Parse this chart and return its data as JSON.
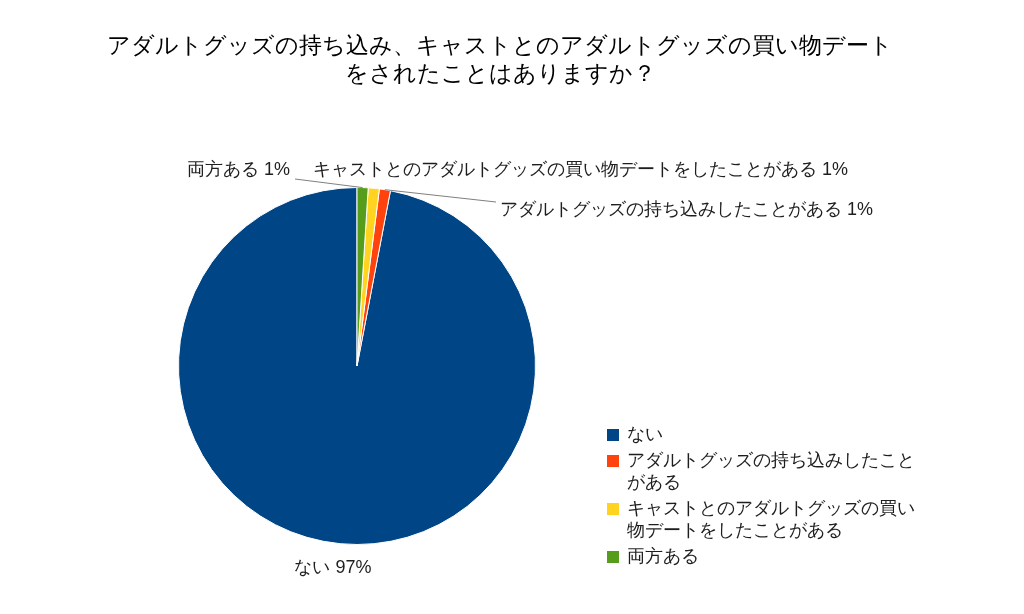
{
  "chart_data": {
    "type": "pie",
    "title": "アダルトグッズの持ち込み、キャストとのアダルトグッズの買い物デートをされたことはありますか？",
    "categories": [
      "ない",
      "アダルトグッズの持ち込みしたことがある",
      "キャストとのアダルトグッズの買い物デートをしたことがある",
      "両方ある"
    ],
    "values": [
      97,
      1,
      1,
      1
    ],
    "colors": [
      "#004586",
      "#ff420e",
      "#ffd320",
      "#579d1c"
    ],
    "value_labels": [
      "ない 97%",
      "アダルトグッズの持ち込みしたことがある 1%",
      "キャストとのアダルトグッズの買い物デートをしたことがある 1%",
      "両方ある 1%"
    ],
    "legend": "bottom right"
  }
}
